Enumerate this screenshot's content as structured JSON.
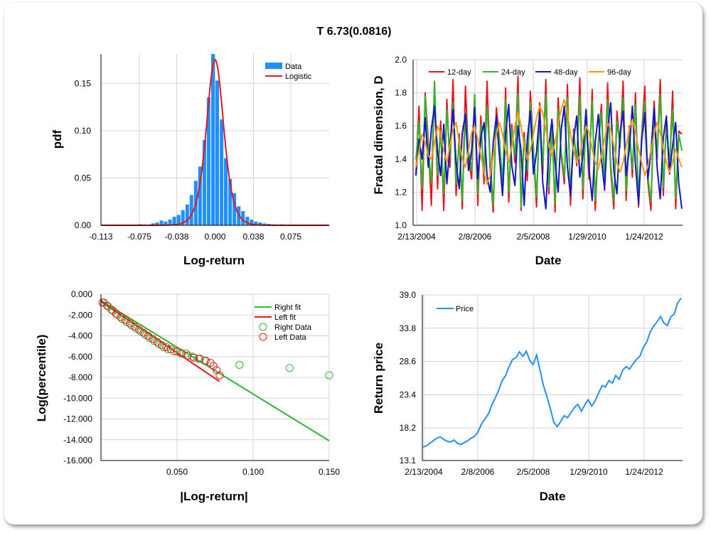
{
  "title": "T 6.73(0.0816)",
  "chart_data": [
    {
      "type": "bar",
      "id": "pdf",
      "xlabel": "Log-return",
      "ylabel": "pdf",
      "xticks": [
        "-0.113",
        "-0.075",
        "-0.038",
        "0.000",
        "0.038",
        "0.075"
      ],
      "yticks": [
        "0.00",
        "0.05",
        "0.10",
        "0.15"
      ],
      "xlim": [
        -0.113,
        0.113
      ],
      "ylim": [
        0,
        0.181
      ],
      "legend": [
        "Data",
        "Logistic"
      ],
      "legend_position": "top-right",
      "colors": {
        "bars": "#1e90ff",
        "fit": "#e8161c"
      },
      "bar_width": 0.00425,
      "bar_x": [
        -0.0744,
        -0.0701,
        -0.0616,
        -0.0574,
        -0.0531,
        -0.0489,
        -0.0446,
        -0.0404,
        -0.0361,
        -0.0319,
        -0.0276,
        -0.0234,
        -0.0191,
        -0.0149,
        -0.0106,
        -0.0064,
        -0.0021,
        0.0021,
        0.0064,
        0.0106,
        0.0149,
        0.0191,
        0.0234,
        0.0276,
        0.0319,
        0.0361,
        0.0404,
        0.0446,
        0.0489,
        0.0531,
        0.0574,
        0.0659,
        0.0744,
        0.0871
      ],
      "bar_values": [
        0.001,
        0.0008,
        0.002,
        0.003,
        0.005,
        0.004,
        0.006,
        0.009,
        0.011,
        0.016,
        0.022,
        0.032,
        0.047,
        0.062,
        0.09,
        0.135,
        0.181,
        0.153,
        0.112,
        0.071,
        0.049,
        0.034,
        0.02,
        0.015,
        0.009,
        0.006,
        0.004,
        0.003,
        0.002,
        0.0015,
        0.001,
        0.001,
        0.0008,
        0.0005
      ],
      "fit_peak": 0.175,
      "fit_scale": 0.0057
    },
    {
      "type": "line",
      "id": "fractal",
      "xlabel": "Date",
      "ylabel": "Fractal dimension, D",
      "xticks": [
        "2/13/2004",
        "2/8/2006",
        "2/5/2008",
        "1/29/2010",
        "1/24/2012"
      ],
      "yticks": [
        "1.0",
        "1.2",
        "1.4",
        "1.6",
        "1.8",
        "2.0"
      ],
      "ylim": [
        1.0,
        2.0
      ],
      "legend_position": "top",
      "series": [
        {
          "name": "12-day",
          "color": "#e8161c",
          "values": [
            1.31,
            1.72,
            1.09,
            1.8,
            1.5,
            1.12,
            1.86,
            1.22,
            1.63,
            1.09,
            1.76,
            1.35,
            1.88,
            1.18,
            1.55,
            1.1,
            1.84,
            1.41,
            1.28,
            1.79,
            1.12,
            1.66,
            1.25,
            1.87,
            1.34,
            1.08,
            1.71,
            1.52,
            1.2,
            1.83,
            1.14,
            1.61,
            1.38,
            1.9,
            1.09,
            1.56,
            1.27,
            1.81,
            1.45,
            1.11,
            1.74,
            1.31,
            1.88,
            1.19,
            1.63,
            1.08,
            1.77,
            1.42,
            1.25,
            1.85,
            1.12,
            1.58,
            1.36,
            1.89,
            1.16,
            1.67,
            1.28,
            1.82,
            1.09,
            1.5,
            1.73,
            1.21,
            1.86,
            1.33,
            1.1,
            1.69,
            1.47,
            1.87,
            1.15,
            1.6,
            1.29,
            1.8,
            1.11,
            1.54,
            1.84,
            1.26,
            1.09,
            1.75,
            1.4,
            1.88,
            1.18,
            1.64,
            1.32,
            1.81,
            1.1,
            1.57,
            1.55
          ]
        },
        {
          "name": "24-day",
          "color": "#2db82d",
          "values": [
            1.4,
            1.63,
            1.22,
            1.78,
            1.45,
            1.26,
            1.87,
            1.3,
            1.57,
            1.19,
            1.7,
            1.41,
            1.74,
            1.25,
            1.51,
            1.15,
            1.68,
            1.45,
            1.33,
            1.79,
            1.19,
            1.61,
            1.31,
            1.72,
            1.39,
            1.12,
            1.65,
            1.52,
            1.25,
            1.76,
            1.2,
            1.58,
            1.42,
            1.8,
            1.11,
            1.53,
            1.33,
            1.74,
            1.46,
            1.17,
            1.66,
            1.36,
            1.79,
            1.23,
            1.6,
            1.13,
            1.7,
            1.44,
            1.29,
            1.77,
            1.18,
            1.56,
            1.39,
            1.78,
            1.22,
            1.62,
            1.33,
            1.75,
            1.15,
            1.5,
            1.68,
            1.27,
            1.76,
            1.37,
            1.15,
            1.63,
            1.48,
            1.77,
            1.21,
            1.57,
            1.34,
            1.73,
            1.16,
            1.53,
            1.75,
            1.3,
            1.14,
            1.68,
            1.43,
            1.79,
            1.23,
            1.6,
            1.37,
            1.7,
            1.16,
            1.55,
            1.45
          ]
        },
        {
          "name": "48-day",
          "color": "#1515c8",
          "values": [
            1.3,
            1.52,
            1.4,
            1.65,
            1.35,
            1.58,
            1.72,
            1.45,
            1.3,
            1.61,
            1.25,
            1.48,
            1.7,
            1.38,
            1.22,
            1.56,
            1.67,
            1.33,
            1.45,
            1.71,
            1.28,
            1.53,
            1.62,
            1.3,
            1.2,
            1.5,
            1.66,
            1.42,
            1.18,
            1.55,
            1.73,
            1.36,
            1.24,
            1.6,
            1.45,
            1.12,
            1.52,
            1.69,
            1.31,
            1.44,
            1.68,
            1.26,
            1.1,
            1.48,
            1.64,
            1.38,
            1.2,
            1.58,
            1.72,
            1.35,
            1.18,
            1.52,
            1.66,
            1.29,
            1.42,
            1.7,
            1.34,
            1.15,
            1.5,
            1.67,
            1.4,
            1.22,
            1.57,
            1.74,
            1.33,
            1.19,
            1.55,
            1.69,
            1.3,
            1.46,
            1.72,
            1.36,
            1.13,
            1.51,
            1.68,
            1.28,
            1.44,
            1.71,
            1.35,
            1.16,
            1.53,
            1.66,
            1.31,
            1.48,
            1.62,
            1.25,
            1.1
          ]
        },
        {
          "name": "96-day",
          "color": "#f29b10",
          "values": [
            1.35,
            1.45,
            1.55,
            1.5,
            1.42,
            1.4,
            1.5,
            1.6,
            1.55,
            1.45,
            1.38,
            1.48,
            1.58,
            1.62,
            1.5,
            1.4,
            1.35,
            1.45,
            1.56,
            1.6,
            1.52,
            1.42,
            1.32,
            1.25,
            1.3,
            1.42,
            1.55,
            1.62,
            1.55,
            1.45,
            1.38,
            1.48,
            1.6,
            1.68,
            1.6,
            1.48,
            1.4,
            1.45,
            1.55,
            1.65,
            1.72,
            1.68,
            1.58,
            1.48,
            1.42,
            1.5,
            1.62,
            1.7,
            1.76,
            1.68,
            1.55,
            1.45,
            1.38,
            1.42,
            1.52,
            1.6,
            1.56,
            1.46,
            1.38,
            1.34,
            1.42,
            1.52,
            1.62,
            1.58,
            1.48,
            1.38,
            1.32,
            1.38,
            1.48,
            1.58,
            1.64,
            1.56,
            1.46,
            1.38,
            1.3,
            1.36,
            1.45,
            1.55,
            1.62,
            1.56,
            1.46,
            1.38,
            1.32,
            1.38,
            1.46,
            1.4,
            1.35
          ]
        }
      ]
    },
    {
      "type": "scatter",
      "id": "tail",
      "xlabel": "|Log-return|",
      "ylabel": "Log(percentile)",
      "xticks": [
        "0.050",
        "0.100",
        "0.150"
      ],
      "yticks": [
        "0.000",
        "-2.000",
        "-4.000",
        "-6.000",
        "-8.000",
        "-10.000",
        "-12.000",
        "-14.000",
        "-16.000"
      ],
      "xlim": [
        0,
        0.15
      ],
      "ylim": [
        -16,
        0
      ],
      "legend": [
        "Right fit",
        "Left fit",
        "Right Data",
        "Left Data"
      ],
      "legend_position": "top-right",
      "colors": {
        "right": "#2db82d",
        "left": "#e8161c"
      },
      "right_fit": {
        "x": [
          0.0,
          0.15
        ],
        "y": [
          -0.6,
          -14.1
        ]
      },
      "left_fit": {
        "x": [
          0.0,
          0.078
        ],
        "y": [
          -0.7,
          -8.4
        ]
      },
      "right_data": {
        "x": [
          0.002,
          0.005,
          0.008,
          0.011,
          0.014,
          0.017,
          0.02,
          0.023,
          0.026,
          0.029,
          0.032,
          0.035,
          0.038,
          0.041,
          0.044,
          0.048,
          0.052,
          0.056,
          0.06,
          0.064,
          0.068,
          0.091,
          0.124,
          0.15
        ],
        "y": [
          -0.8,
          -1.2,
          -1.6,
          -2.0,
          -2.4,
          -2.7,
          -3.0,
          -3.3,
          -3.6,
          -3.9,
          -4.2,
          -4.5,
          -4.8,
          -5.1,
          -5.3,
          -5.5,
          -5.6,
          -5.7,
          -6.0,
          -6.2,
          -6.4,
          -6.8,
          -7.1,
          -7.8
        ]
      },
      "left_data": {
        "x": [
          0.001,
          0.004,
          0.007,
          0.01,
          0.013,
          0.016,
          0.019,
          0.022,
          0.025,
          0.028,
          0.031,
          0.034,
          0.037,
          0.04,
          0.043,
          0.046,
          0.05,
          0.053,
          0.057,
          0.061,
          0.065,
          0.069,
          0.072,
          0.074,
          0.076,
          0.078
        ],
        "y": [
          -0.8,
          -1.1,
          -1.5,
          -1.9,
          -2.2,
          -2.5,
          -2.8,
          -3.1,
          -3.4,
          -3.7,
          -4.0,
          -4.3,
          -4.6,
          -4.9,
          -5.1,
          -5.3,
          -5.5,
          -5.7,
          -5.9,
          -6.1,
          -6.2,
          -6.4,
          -6.6,
          -6.9,
          -7.3,
          -7.8
        ]
      }
    },
    {
      "type": "line",
      "id": "price",
      "xlabel": "Date",
      "ylabel": "Return price",
      "xticks": [
        "2/13/2004",
        "2/8/2006",
        "2/5/2008",
        "1/29/2010",
        "1/24/2012"
      ],
      "yticks": [
        "13.1",
        "18.2",
        "23.4",
        "28.6",
        "33.8",
        "39.0"
      ],
      "ylim": [
        13.1,
        39.0
      ],
      "legend_position": "top-left",
      "series": [
        {
          "name": "Price",
          "color": "#1e90ff",
          "values": [
            15.2,
            15.4,
            15.8,
            16.2,
            16.6,
            16.8,
            16.4,
            16.1,
            16.0,
            16.3,
            15.8,
            15.6,
            15.9,
            16.2,
            16.6,
            16.9,
            17.6,
            18.8,
            19.6,
            20.4,
            21.8,
            22.9,
            24.1,
            25.6,
            26.4,
            27.8,
            28.9,
            29.2,
            30.1,
            29.4,
            30.2,
            28.8,
            28.1,
            29.6,
            27.2,
            24.8,
            23.1,
            21.2,
            19.1,
            18.4,
            19.2,
            20.1,
            19.8,
            20.6,
            21.4,
            21.9,
            20.8,
            21.8,
            22.6,
            21.6,
            22.4,
            23.6,
            24.8,
            24.6,
            25.6,
            25.2,
            26.4,
            25.8,
            27.2,
            27.8,
            27.4,
            28.2,
            28.9,
            29.4,
            30.8,
            31.6,
            33.2,
            34.1,
            34.8,
            35.6,
            34.6,
            34.2,
            35.6,
            36.0,
            37.8,
            38.5
          ]
        }
      ]
    }
  ]
}
